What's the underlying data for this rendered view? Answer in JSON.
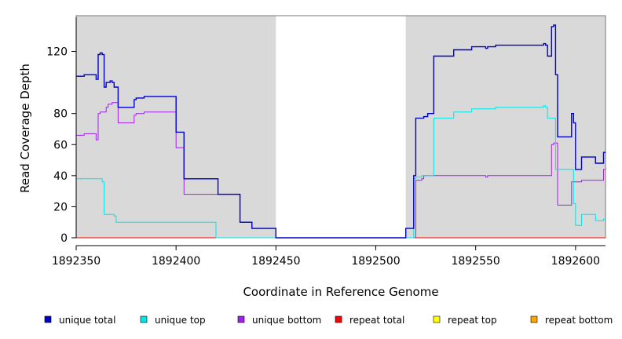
{
  "chart_data": {
    "type": "line",
    "title": "",
    "xlabel": "Coordinate in Reference Genome",
    "ylabel": "Read Coverage Depth",
    "xlim": [
      1892350,
      1892615
    ],
    "ylim": [
      0,
      143
    ],
    "xticks": [
      1892350,
      1892400,
      1892450,
      1892500,
      1892550,
      1892600
    ],
    "yticks": [
      0,
      20,
      40,
      60,
      80,
      120
    ],
    "shaded_regions": [
      [
        1892350,
        1892450
      ],
      [
        1892515,
        1892615
      ]
    ],
    "shade_color": "#d9d9d9",
    "grid": false,
    "legend_position": "bottom",
    "series": [
      {
        "name": "unique total",
        "color": "#0000cc",
        "points": [
          [
            1892350,
            104
          ],
          [
            1892354,
            104
          ],
          [
            1892354,
            105
          ],
          [
            1892360,
            105
          ],
          [
            1892360,
            102
          ],
          [
            1892361,
            102
          ],
          [
            1892361,
            118
          ],
          [
            1892362,
            118
          ],
          [
            1892362,
            119
          ],
          [
            1892363,
            119
          ],
          [
            1892363,
            118
          ],
          [
            1892364,
            118
          ],
          [
            1892364,
            97
          ],
          [
            1892365,
            97
          ],
          [
            1892365,
            100
          ],
          [
            1892367,
            100
          ],
          [
            1892367,
            101
          ],
          [
            1892368,
            101
          ],
          [
            1892368,
            100
          ],
          [
            1892369,
            100
          ],
          [
            1892369,
            97
          ],
          [
            1892371,
            97
          ],
          [
            1892371,
            84
          ],
          [
            1892379,
            84
          ],
          [
            1892379,
            89
          ],
          [
            1892380,
            89
          ],
          [
            1892380,
            90
          ],
          [
            1892384,
            90
          ],
          [
            1892384,
            91
          ],
          [
            1892400,
            91
          ],
          [
            1892400,
            68
          ],
          [
            1892404,
            68
          ],
          [
            1892404,
            38
          ],
          [
            1892421,
            38
          ],
          [
            1892421,
            28
          ],
          [
            1892432,
            28
          ],
          [
            1892432,
            10
          ],
          [
            1892438,
            10
          ],
          [
            1892438,
            6
          ],
          [
            1892450,
            6
          ],
          [
            1892450,
            0
          ],
          [
            1892515,
            0
          ],
          [
            1892515,
            6
          ],
          [
            1892519,
            6
          ],
          [
            1892519,
            40
          ],
          [
            1892520,
            40
          ],
          [
            1892520,
            77
          ],
          [
            1892524,
            77
          ],
          [
            1892524,
            78
          ],
          [
            1892526,
            78
          ],
          [
            1892526,
            80
          ],
          [
            1892529,
            80
          ],
          [
            1892529,
            117
          ],
          [
            1892539,
            117
          ],
          [
            1892539,
            121
          ],
          [
            1892548,
            121
          ],
          [
            1892548,
            123
          ],
          [
            1892555,
            123
          ],
          [
            1892555,
            122
          ],
          [
            1892556,
            122
          ],
          [
            1892556,
            123
          ],
          [
            1892560,
            123
          ],
          [
            1892560,
            124
          ],
          [
            1892584,
            124
          ],
          [
            1892584,
            125
          ],
          [
            1892585,
            125
          ],
          [
            1892585,
            124
          ],
          [
            1892586,
            124
          ],
          [
            1892586,
            117
          ],
          [
            1892588,
            117
          ],
          [
            1892588,
            136
          ],
          [
            1892589,
            136
          ],
          [
            1892589,
            137
          ],
          [
            1892590,
            137
          ],
          [
            1892590,
            105
          ],
          [
            1892591,
            105
          ],
          [
            1892591,
            65
          ],
          [
            1892598,
            65
          ],
          [
            1892598,
            80
          ],
          [
            1892599,
            80
          ],
          [
            1892599,
            74
          ],
          [
            1892600,
            74
          ],
          [
            1892600,
            44
          ],
          [
            1892603,
            44
          ],
          [
            1892603,
            52
          ],
          [
            1892610,
            52
          ],
          [
            1892610,
            48
          ],
          [
            1892614,
            48
          ],
          [
            1892614,
            55
          ],
          [
            1892615,
            55
          ]
        ]
      },
      {
        "name": "unique top",
        "color": "#00e5e5",
        "points": [
          [
            1892350,
            38
          ],
          [
            1892363,
            38
          ],
          [
            1892363,
            36
          ],
          [
            1892364,
            36
          ],
          [
            1892364,
            15
          ],
          [
            1892369,
            15
          ],
          [
            1892369,
            14
          ],
          [
            1892370,
            14
          ],
          [
            1892370,
            10
          ],
          [
            1892420,
            10
          ],
          [
            1892420,
            0
          ],
          [
            1892450,
            0
          ],
          [
            1892515,
            0
          ],
          [
            1892519,
            0
          ],
          [
            1892519,
            38
          ],
          [
            1892520,
            38
          ],
          [
            1892520,
            39
          ],
          [
            1892523,
            39
          ],
          [
            1892523,
            40
          ],
          [
            1892529,
            40
          ],
          [
            1892529,
            77
          ],
          [
            1892539,
            77
          ],
          [
            1892539,
            81
          ],
          [
            1892548,
            81
          ],
          [
            1892548,
            83
          ],
          [
            1892560,
            83
          ],
          [
            1892560,
            84
          ],
          [
            1892584,
            84
          ],
          [
            1892584,
            85
          ],
          [
            1892585,
            85
          ],
          [
            1892585,
            84
          ],
          [
            1892586,
            84
          ],
          [
            1892586,
            77
          ],
          [
            1892590,
            77
          ],
          [
            1892590,
            44
          ],
          [
            1892599,
            44
          ],
          [
            1892599,
            22
          ],
          [
            1892600,
            22
          ],
          [
            1892600,
            8
          ],
          [
            1892603,
            8
          ],
          [
            1892603,
            15
          ],
          [
            1892610,
            15
          ],
          [
            1892610,
            11
          ],
          [
            1892614,
            11
          ],
          [
            1892614,
            12
          ],
          [
            1892615,
            12
          ]
        ]
      },
      {
        "name": "unique bottom",
        "color": "#a020f0",
        "points": [
          [
            1892350,
            66
          ],
          [
            1892354,
            66
          ],
          [
            1892354,
            67
          ],
          [
            1892360,
            67
          ],
          [
            1892360,
            63
          ],
          [
            1892361,
            63
          ],
          [
            1892361,
            80
          ],
          [
            1892362,
            80
          ],
          [
            1892362,
            81
          ],
          [
            1892365,
            81
          ],
          [
            1892365,
            84
          ],
          [
            1892366,
            84
          ],
          [
            1892366,
            86
          ],
          [
            1892368,
            86
          ],
          [
            1892368,
            87
          ],
          [
            1892371,
            87
          ],
          [
            1892371,
            74
          ],
          [
            1892379,
            74
          ],
          [
            1892379,
            79
          ],
          [
            1892380,
            79
          ],
          [
            1892380,
            80
          ],
          [
            1892384,
            80
          ],
          [
            1892384,
            81
          ],
          [
            1892400,
            81
          ],
          [
            1892400,
            58
          ],
          [
            1892404,
            58
          ],
          [
            1892404,
            28
          ],
          [
            1892421,
            28
          ],
          [
            1892421,
            28
          ],
          [
            1892432,
            28
          ],
          [
            1892432,
            10
          ],
          [
            1892438,
            10
          ],
          [
            1892438,
            6
          ],
          [
            1892450,
            6
          ],
          [
            1892450,
            0
          ],
          [
            1892515,
            0
          ],
          [
            1892520,
            0
          ],
          [
            1892520,
            37
          ],
          [
            1892523,
            37
          ],
          [
            1892523,
            38
          ],
          [
            1892524,
            38
          ],
          [
            1892524,
            40
          ],
          [
            1892555,
            40
          ],
          [
            1892555,
            39
          ],
          [
            1892556,
            39
          ],
          [
            1892556,
            40
          ],
          [
            1892588,
            40
          ],
          [
            1892588,
            60
          ],
          [
            1892589,
            60
          ],
          [
            1892589,
            61
          ],
          [
            1892591,
            61
          ],
          [
            1892591,
            21
          ],
          [
            1892598,
            21
          ],
          [
            1892598,
            36
          ],
          [
            1892603,
            36
          ],
          [
            1892603,
            37
          ],
          [
            1892614,
            37
          ],
          [
            1892614,
            44
          ],
          [
            1892615,
            44
          ]
        ]
      },
      {
        "name": "repeat total",
        "color": "#ff0000",
        "points": [
          [
            1892350,
            0
          ],
          [
            1892615,
            0
          ]
        ]
      },
      {
        "name": "repeat top",
        "color": "#ffff00",
        "points": [
          [
            1892350,
            0
          ],
          [
            1892615,
            0
          ]
        ]
      },
      {
        "name": "repeat bottom",
        "color": "#ffa500",
        "points": [
          [
            1892350,
            0
          ],
          [
            1892615,
            0
          ]
        ]
      }
    ]
  }
}
